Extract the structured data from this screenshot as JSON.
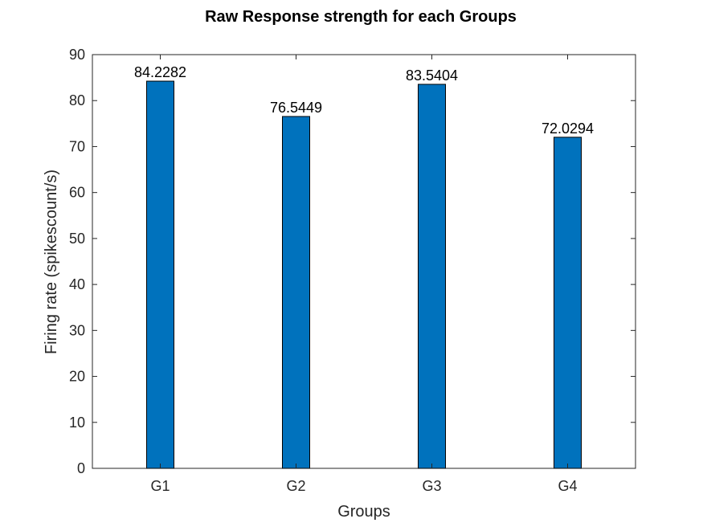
{
  "chart_data": {
    "type": "bar",
    "title": "Raw Response strength for each Groups",
    "xlabel": "Groups",
    "ylabel": "Firing rate (spikescount/s)",
    "categories": [
      "G1",
      "G2",
      "G3",
      "G4"
    ],
    "values": [
      84.2282,
      76.5449,
      83.5404,
      72.0294
    ],
    "data_labels": [
      "84.2282",
      "76.5449",
      "83.5404",
      "72.0294"
    ],
    "ylim": [
      0,
      90
    ],
    "yticks": [
      0,
      10,
      20,
      30,
      40,
      50,
      60,
      70,
      80,
      90
    ],
    "grid": false,
    "legend": "none",
    "bar_color": "#0072BD"
  }
}
